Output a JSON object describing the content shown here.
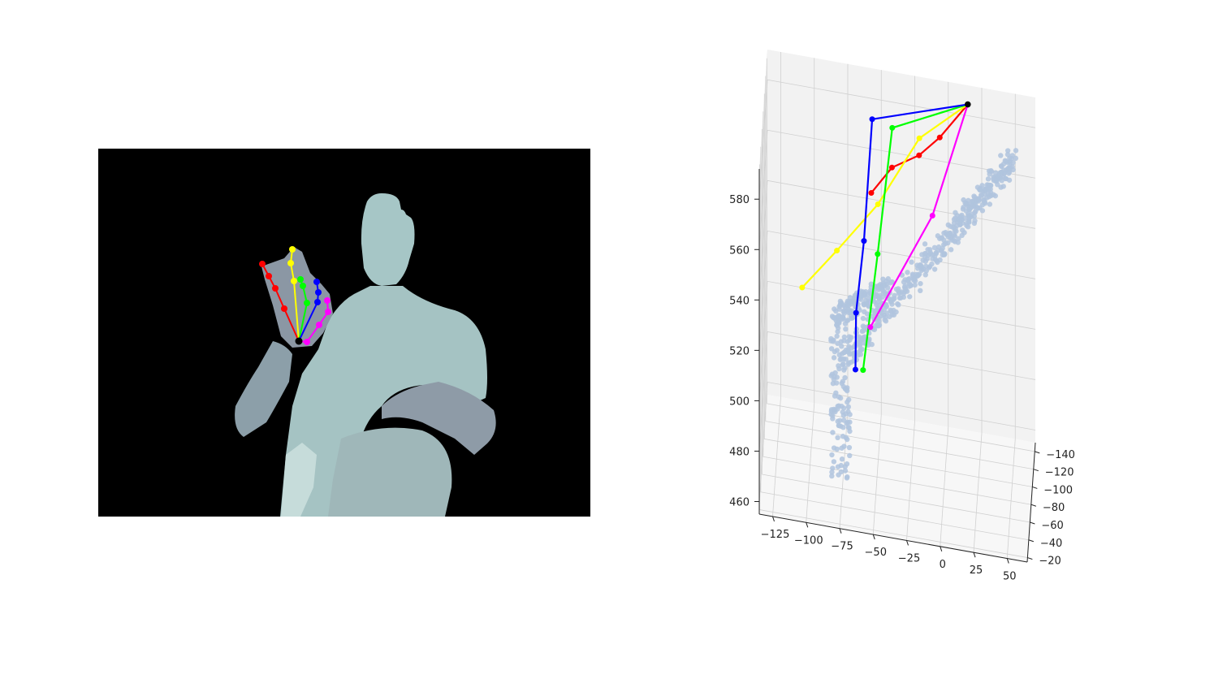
{
  "chart_data": [
    {
      "type": "image",
      "background_color": "#000000",
      "silhouette_color": "#9fb9bd",
      "bone_colors": {
        "thumb": "#ff0000",
        "index": "#ffff00",
        "middle": "#00ff00",
        "ring": "#0000ff",
        "little": "#ff00ff",
        "wrist": "#000000"
      },
      "skeleton_2d": {
        "wrist": [
          368,
          420
        ],
        "fingers": [
          {
            "name": "thumb",
            "color": "#ff0000",
            "points": [
              [
                350,
                380
              ],
              [
                339,
                355
              ],
              [
                331,
                340
              ],
              [
                323,
                325
              ]
            ]
          },
          {
            "name": "index",
            "color": "#ffff00",
            "points": [
              [
                362,
                346
              ],
              [
                358,
                324
              ],
              [
                360,
                307
              ]
            ]
          },
          {
            "name": "middle",
            "color": "#00ff00",
            "points": [
              [
                378,
                373
              ],
              [
                373,
                352
              ],
              [
                370,
                344
              ]
            ]
          },
          {
            "name": "ring",
            "color": "#0000ff",
            "points": [
              [
                391,
                372
              ],
              [
                392,
                360
              ],
              [
                390,
                347
              ]
            ]
          },
          {
            "name": "little",
            "color": "#ff00ff",
            "points": [
              [
                378,
                421
              ],
              [
                393,
                400
              ],
              [
                404,
                384
              ],
              [
                403,
                370
              ]
            ]
          }
        ]
      }
    },
    {
      "type": "scatter3d",
      "title": "",
      "axes": {
        "x": {
          "ticks": [
            "−125",
            "−100",
            "−75",
            "−50",
            "−25",
            "0",
            "25",
            "50"
          ],
          "range": [
            -135,
            65
          ]
        },
        "y": {
          "ticks": [
            "−140",
            "−120",
            "−100",
            "−80",
            "−60",
            "−40",
            "−20"
          ],
          "range": [
            -150,
            -15
          ]
        },
        "z": {
          "ticks": [
            "460",
            "480",
            "500",
            "520",
            "540",
            "560",
            "580"
          ],
          "range": [
            455,
            592
          ]
        }
      },
      "grid": true,
      "point_cloud_color": "#b0c4de",
      "wrist_point": [
        15,
        -140,
        588
      ],
      "skeleton_series": [
        {
          "color": "#ff0000",
          "points": [
            [
              15,
              -140,
              588
            ],
            [
              -5,
              -120,
              580
            ],
            [
              -20,
              -110,
              575
            ],
            [
              -40,
              -105,
              570
            ],
            [
              -55,
              -95,
              562
            ]
          ]
        },
        {
          "color": "#ffff00",
          "points": [
            [
              15,
              -140,
              588
            ],
            [
              -20,
              -115,
              580
            ],
            [
              -50,
              -95,
              558
            ],
            [
              -80,
              -80,
              542
            ],
            [
              -105,
              -60,
              532
            ]
          ]
        },
        {
          "color": "#00ff00",
          "points": [
            [
              15,
              -140,
              588
            ],
            [
              -40,
              -110,
              584
            ],
            [
              -50,
              -90,
              540
            ],
            [
              -60,
              -70,
              500
            ]
          ]
        },
        {
          "color": "#0000ff",
          "points": [
            [
              15,
              -140,
              588
            ],
            [
              -55,
              -110,
              586
            ],
            [
              -60,
              -85,
              546
            ],
            [
              -65,
              -65,
              524
            ],
            [
              -65,
              -55,
              505
            ]
          ]
        },
        {
          "color": "#ff00ff",
          "points": [
            [
              15,
              -140,
              588
            ],
            [
              -10,
              -110,
              552
            ],
            [
              -55,
              -80,
              514
            ]
          ]
        }
      ]
    }
  ]
}
